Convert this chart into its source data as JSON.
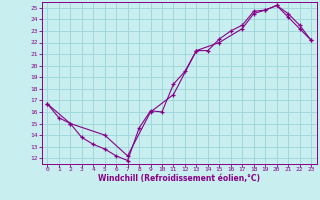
{
  "xlabel": "Windchill (Refroidissement éolien,°C)",
  "bg_color": "#c8eef0",
  "grid_color": "#a0d8dc",
  "line_color": "#880088",
  "marker": "+",
  "xlim": [
    -0.5,
    23.5
  ],
  "ylim": [
    11.5,
    25.5
  ],
  "xticks": [
    0,
    1,
    2,
    3,
    4,
    5,
    6,
    7,
    8,
    9,
    10,
    11,
    12,
    13,
    14,
    15,
    16,
    17,
    18,
    19,
    20,
    21,
    22,
    23
  ],
  "yticks": [
    12,
    13,
    14,
    15,
    16,
    17,
    18,
    19,
    20,
    21,
    22,
    23,
    24,
    25
  ],
  "line1_x": [
    0,
    1,
    2,
    3,
    4,
    5,
    6,
    7,
    8,
    9,
    10,
    11,
    12,
    13,
    14,
    15,
    16,
    17,
    18,
    19,
    20,
    21,
    22,
    23
  ],
  "line1_y": [
    16.7,
    15.5,
    15.0,
    13.8,
    13.2,
    12.8,
    12.2,
    11.8,
    14.6,
    16.1,
    16.0,
    18.4,
    19.5,
    21.3,
    21.3,
    22.3,
    23.0,
    23.5,
    24.7,
    24.8,
    25.2,
    24.2,
    23.2,
    22.2
  ],
  "line2_x": [
    0,
    2,
    5,
    7,
    9,
    11,
    13,
    15,
    17,
    18,
    19,
    20,
    21,
    22,
    23
  ],
  "line2_y": [
    16.7,
    15.0,
    14.0,
    12.2,
    16.0,
    17.5,
    21.3,
    22.0,
    23.2,
    24.5,
    24.8,
    25.2,
    24.5,
    23.5,
    22.2
  ]
}
